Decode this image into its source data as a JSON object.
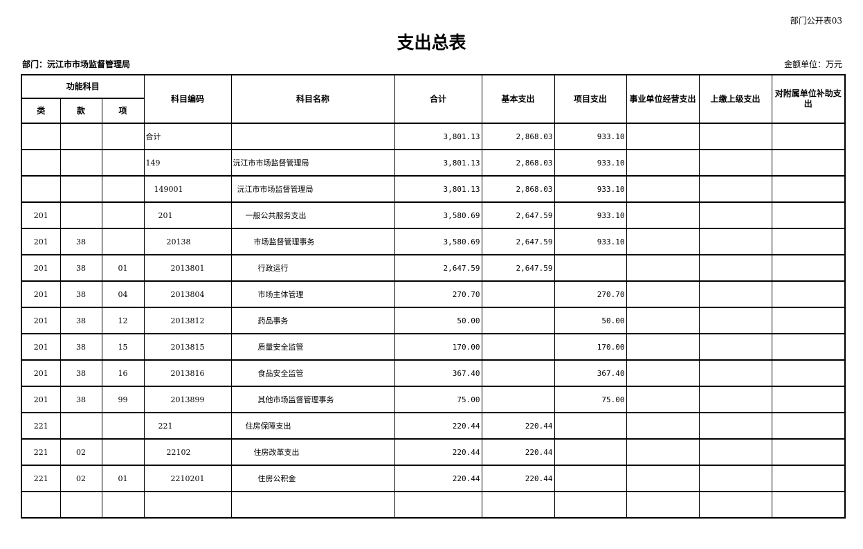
{
  "form_no": "部门公开表03",
  "title": "支出总表",
  "department": "部门：沅江市市场监督管理局",
  "unit": "金额单位：万元",
  "headers": {
    "group": "功能科目",
    "lei": "类",
    "kuan": "款",
    "xiang": "项",
    "code": "科目编码",
    "name": "科目名称",
    "total": "合计",
    "basic": "基本支出",
    "project": "项目支出",
    "business": "事业单位经营支出",
    "superior": "上缴上级支出",
    "subsidy": "对附属单位补助支出"
  },
  "rows": [
    {
      "lei": "",
      "kuan": "",
      "xiang": "",
      "code": "合计",
      "name": "",
      "total": "3,801.13",
      "basic": "2,868.03",
      "project": "933.10",
      "business": "",
      "superior": "",
      "subsidy": "",
      "level": 0
    },
    {
      "lei": "",
      "kuan": "",
      "xiang": "",
      "code": "149",
      "name": "沅江市市场监督管理局",
      "total": "3,801.13",
      "basic": "2,868.03",
      "project": "933.10",
      "business": "",
      "superior": "",
      "subsidy": "",
      "level": 1
    },
    {
      "lei": "",
      "kuan": "",
      "xiang": "",
      "code": "149001",
      "name": "沅江市市场监督管理局",
      "total": "3,801.13",
      "basic": "2,868.03",
      "project": "933.10",
      "business": "",
      "superior": "",
      "subsidy": "",
      "level": 2
    },
    {
      "lei": "201",
      "kuan": "",
      "xiang": "",
      "code": "201",
      "name": "一般公共服务支出",
      "total": "3,580.69",
      "basic": "2,647.59",
      "project": "933.10",
      "business": "",
      "superior": "",
      "subsidy": "",
      "level": 3
    },
    {
      "lei": "201",
      "kuan": "38",
      "xiang": "",
      "code": "20138",
      "name": "市场监督管理事务",
      "total": "3,580.69",
      "basic": "2,647.59",
      "project": "933.10",
      "business": "",
      "superior": "",
      "subsidy": "",
      "level": 4
    },
    {
      "lei": "201",
      "kuan": "38",
      "xiang": "01",
      "code": "2013801",
      "name": "行政运行",
      "total": "2,647.59",
      "basic": "2,647.59",
      "project": "",
      "business": "",
      "superior": "",
      "subsidy": "",
      "level": 5
    },
    {
      "lei": "201",
      "kuan": "38",
      "xiang": "04",
      "code": "2013804",
      "name": "市场主体管理",
      "total": "270.70",
      "basic": "",
      "project": "270.70",
      "business": "",
      "superior": "",
      "subsidy": "",
      "level": 5
    },
    {
      "lei": "201",
      "kuan": "38",
      "xiang": "12",
      "code": "2013812",
      "name": "药品事务",
      "total": "50.00",
      "basic": "",
      "project": "50.00",
      "business": "",
      "superior": "",
      "subsidy": "",
      "level": 5
    },
    {
      "lei": "201",
      "kuan": "38",
      "xiang": "15",
      "code": "2013815",
      "name": "质量安全监管",
      "total": "170.00",
      "basic": "",
      "project": "170.00",
      "business": "",
      "superior": "",
      "subsidy": "",
      "level": 5
    },
    {
      "lei": "201",
      "kuan": "38",
      "xiang": "16",
      "code": "2013816",
      "name": "食品安全监管",
      "total": "367.40",
      "basic": "",
      "project": "367.40",
      "business": "",
      "superior": "",
      "subsidy": "",
      "level": 5
    },
    {
      "lei": "201",
      "kuan": "38",
      "xiang": "99",
      "code": "2013899",
      "name": "其他市场监督管理事务",
      "total": "75.00",
      "basic": "",
      "project": "75.00",
      "business": "",
      "superior": "",
      "subsidy": "",
      "level": 5
    },
    {
      "lei": "221",
      "kuan": "",
      "xiang": "",
      "code": "221",
      "name": "住房保障支出",
      "total": "220.44",
      "basic": "220.44",
      "project": "",
      "business": "",
      "superior": "",
      "subsidy": "",
      "level": 3
    },
    {
      "lei": "221",
      "kuan": "02",
      "xiang": "",
      "code": "22102",
      "name": "住房改革支出",
      "total": "220.44",
      "basic": "220.44",
      "project": "",
      "business": "",
      "superior": "",
      "subsidy": "",
      "level": 4
    },
    {
      "lei": "221",
      "kuan": "02",
      "xiang": "01",
      "code": "2210201",
      "name": "住房公积金",
      "total": "220.44",
      "basic": "220.44",
      "project": "",
      "business": "",
      "superior": "",
      "subsidy": "",
      "level": 5
    },
    {
      "lei": "",
      "kuan": "",
      "xiang": "",
      "code": "",
      "name": "",
      "total": "",
      "basic": "",
      "project": "",
      "business": "",
      "superior": "",
      "subsidy": "",
      "level": 0
    }
  ]
}
